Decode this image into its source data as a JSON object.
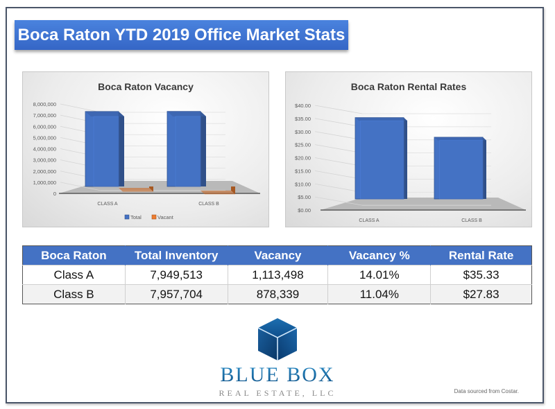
{
  "page": {
    "title": "Boca Raton YTD 2019 Office Market Stats",
    "source_note": "Data sourced from Costar."
  },
  "logo": {
    "name": "BLUE BOX",
    "subtitle": "REAL ESTATE, LLC"
  },
  "colors": {
    "banner": "#3f78d8",
    "total": "#4472c4",
    "vacant": "#ed7d31",
    "table_header": "#4472c4"
  },
  "table": {
    "headers": [
      "Boca Raton",
      "Total Inventory",
      "Vacancy",
      "Vacancy %",
      "Rental Rate"
    ],
    "rows": [
      [
        "Class A",
        "7,949,513",
        "1,113,498",
        "14.01%",
        "$35.33"
      ],
      [
        "Class B",
        "7,957,704",
        "878,339",
        "11.04%",
        "$27.83"
      ]
    ]
  },
  "chart_data": [
    {
      "type": "bar",
      "title": "Boca Raton Vacancy",
      "categories": [
        "CLASS A",
        "CLASS B"
      ],
      "series": [
        {
          "name": "Total",
          "values": [
            7949513,
            7957704
          ]
        },
        {
          "name": "Vacant",
          "values": [
            1113498,
            878339
          ]
        }
      ],
      "ylim": [
        0,
        8000000
      ],
      "yticks": [
        "0",
        "1,000,000",
        "2,000,000",
        "3,000,000",
        "4,000,000",
        "5,000,000",
        "6,000,000",
        "7,000,000",
        "8,000,000"
      ],
      "ytick_values": [
        0,
        1000000,
        2000000,
        3000000,
        4000000,
        5000000,
        6000000,
        7000000,
        8000000
      ],
      "legend": [
        "Total",
        "Vacant"
      ],
      "legend_position": "bottom",
      "grid": true,
      "xlabel": "",
      "ylabel": ""
    },
    {
      "type": "bar",
      "title": "Boca Raton Rental Rates",
      "categories": [
        "CLASS A",
        "CLASS B"
      ],
      "series": [
        {
          "name": "Rental Rate",
          "values": [
            35.33,
            27.83
          ]
        }
      ],
      "ylim": [
        0,
        40
      ],
      "yticks": [
        "$0.00",
        "$5.00",
        "$10.00",
        "$15.00",
        "$20.00",
        "$25.00",
        "$30.00",
        "$35.00",
        "$40.00"
      ],
      "ytick_values": [
        0,
        5,
        10,
        15,
        20,
        25,
        30,
        35,
        40
      ],
      "legend": [],
      "grid": true,
      "xlabel": "",
      "ylabel": ""
    }
  ]
}
